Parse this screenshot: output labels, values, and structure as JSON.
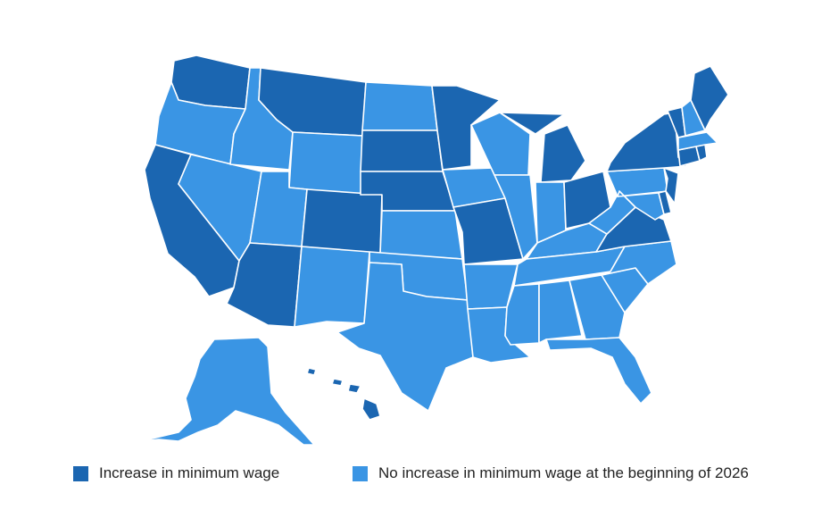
{
  "colors": {
    "increase": "#1b66b1",
    "no_increase": "#3a95e4",
    "border": "#ffffff"
  },
  "legend": {
    "increase_label": "Increase in minimum wage",
    "no_increase_label": "No increase in minimum wage at the beginning of 2026"
  },
  "states": {
    "increase": [
      "WA",
      "MT",
      "CA",
      "AZ",
      "CO",
      "NE",
      "SD",
      "MN",
      "MO",
      "MI",
      "OH",
      "VA",
      "NY",
      "VT",
      "ME",
      "CT",
      "RI",
      "NJ",
      "DE",
      "HI"
    ],
    "no_increase": [
      "OR",
      "ID",
      "NV",
      "UT",
      "WY",
      "NM",
      "ND",
      "KS",
      "OK",
      "TX",
      "IA",
      "AR",
      "LA",
      "WI",
      "IL",
      "IN",
      "KY",
      "TN",
      "MS",
      "AL",
      "GA",
      "FL",
      "SC",
      "NC",
      "WV",
      "PA",
      "MD",
      "NH",
      "MA",
      "AK"
    ]
  }
}
